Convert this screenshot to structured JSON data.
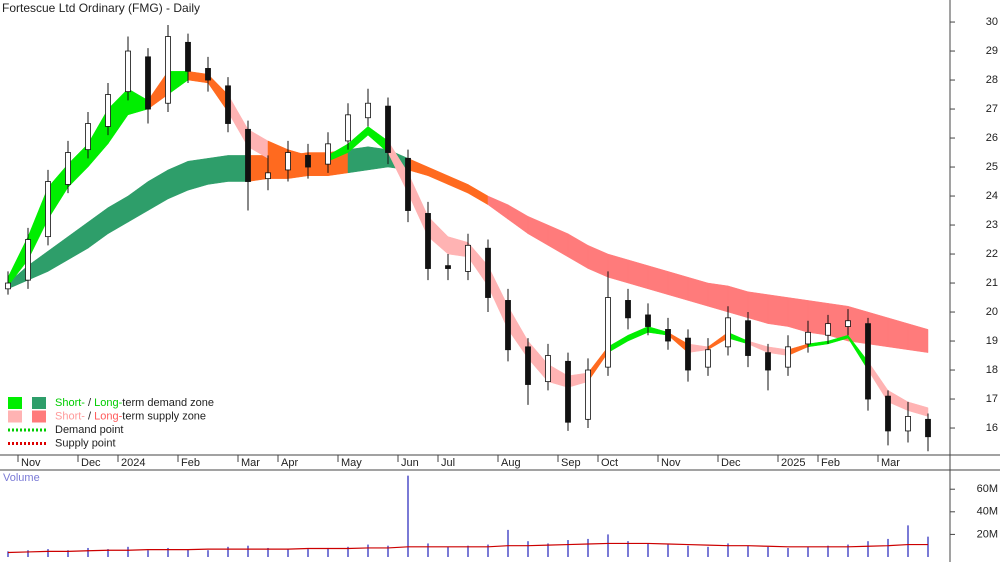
{
  "chart_data": {
    "type": "candlestick",
    "title": "Fortescue Ltd Ordinary (FMG) - Daily",
    "categories": [
      null,
      "Nov",
      null,
      null,
      "Dec",
      null,
      "2024",
      null,
      null,
      "Feb",
      null,
      null,
      "Mar",
      null,
      "Apr",
      null,
      null,
      "May",
      null,
      null,
      "Jun",
      null,
      "Jul",
      null,
      null,
      "Aug",
      null,
      null,
      "Sep",
      null,
      "Oct",
      null,
      null,
      "Nov",
      null,
      null,
      "Dec",
      null,
      null,
      "2025",
      null,
      "Feb",
      null,
      null,
      "Mar",
      null,
      null
    ],
    "open": [
      20.8,
      21.1,
      22.6,
      24.4,
      25.6,
      26.4,
      27.6,
      28.8,
      27.2,
      29.3,
      28.4,
      27.8,
      26.3,
      24.6,
      24.9,
      25.4,
      25.1,
      25.9,
      26.7,
      27.1,
      25.3,
      23.4,
      21.6,
      21.4,
      22.2,
      20.4,
      18.8,
      17.6,
      18.3,
      16.3,
      18.1,
      20.4,
      19.9,
      19.4,
      19.1,
      18.1,
      18.8,
      19.7,
      18.6,
      18.1,
      18.9,
      19.2,
      19.5,
      19.6,
      17.1,
      15.9,
      16.3
    ],
    "high": [
      21.4,
      22.9,
      24.9,
      25.9,
      26.9,
      27.9,
      29.5,
      29.1,
      29.9,
      29.6,
      28.8,
      28.1,
      26.6,
      25.4,
      25.9,
      25.8,
      26.2,
      27.2,
      27.7,
      27.4,
      25.6,
      23.8,
      22.0,
      22.7,
      22.5,
      20.8,
      19.1,
      18.9,
      18.6,
      18.4,
      21.4,
      20.8,
      20.3,
      19.8,
      19.4,
      19.1,
      20.2,
      20.0,
      18.9,
      19.2,
      19.7,
      19.9,
      20.1,
      19.8,
      17.3,
      16.9,
      16.5
    ],
    "low": [
      20.6,
      20.8,
      22.3,
      24.1,
      25.3,
      26.1,
      27.3,
      26.5,
      26.9,
      27.9,
      27.6,
      26.2,
      23.5,
      24.2,
      24.5,
      24.6,
      24.8,
      25.6,
      26.4,
      25.1,
      23.1,
      21.1,
      21.1,
      21.1,
      20.0,
      18.3,
      16.8,
      17.3,
      15.9,
      16.0,
      17.8,
      19.4,
      19.2,
      18.7,
      17.6,
      17.8,
      18.5,
      18.1,
      17.3,
      17.8,
      18.6,
      18.9,
      19.2,
      16.6,
      15.4,
      15.5,
      15.2
    ],
    "close": [
      21.0,
      22.5,
      24.5,
      25.5,
      26.5,
      27.5,
      29.0,
      27.0,
      29.5,
      28.3,
      28.0,
      26.5,
      24.5,
      24.8,
      25.5,
      25.0,
      25.8,
      26.8,
      27.2,
      25.5,
      23.5,
      21.5,
      21.5,
      22.3,
      20.5,
      18.7,
      17.5,
      18.5,
      16.2,
      18.0,
      20.5,
      19.8,
      19.5,
      19.0,
      18.0,
      18.7,
      19.8,
      18.5,
      18.0,
      18.8,
      19.3,
      19.6,
      19.7,
      17.0,
      15.9,
      16.4,
      15.7
    ],
    "ylim": [
      15.07,
      30.76
    ],
    "yticks": [
      16,
      17,
      18,
      19,
      20,
      21,
      22,
      23,
      24,
      25,
      26,
      27,
      28,
      29,
      30
    ],
    "candle_color": "#111111",
    "bands": [
      {
        "upper": [
          21.0,
          21.6,
          22.1,
          22.6,
          23.1,
          23.6,
          24.0,
          24.5,
          24.9,
          25.2,
          25.3,
          25.4,
          25.4,
          25.4,
          25.4,
          25.5,
          25.5,
          25.6,
          25.7,
          25.6,
          25.3,
          25.0,
          24.7,
          24.4,
          24.0,
          23.7,
          23.3,
          23.0,
          22.7,
          22.3,
          22.0,
          21.8,
          21.6,
          21.4,
          21.2,
          21.0,
          20.9,
          20.7,
          20.6,
          20.5,
          20.4,
          20.3,
          20.2,
          20.0,
          19.8,
          19.6,
          19.4
        ],
        "lower": [
          20.8,
          21.1,
          21.4,
          21.8,
          22.2,
          22.7,
          23.1,
          23.5,
          23.9,
          24.2,
          24.4,
          24.5,
          24.5,
          24.6,
          24.6,
          24.7,
          24.7,
          24.8,
          24.9,
          25.0,
          24.9,
          24.7,
          24.4,
          24.1,
          23.7,
          23.2,
          22.7,
          22.3,
          21.9,
          21.5,
          21.2,
          21.0,
          20.8,
          20.6,
          20.4,
          20.2,
          20.0,
          19.8,
          19.6,
          19.5,
          19.3,
          19.2,
          19.0,
          18.9,
          18.8,
          18.7,
          18.6
        ],
        "colors": [
          "#2e9e6a",
          "#2e9e6a",
          "#2e9e6a",
          "#2e9e6a",
          "#2e9e6a",
          "#2e9e6a",
          "#2e9e6a",
          "#2e9e6a",
          "#2e9e6a",
          "#2e9e6a",
          "#2e9e6a",
          "#2e9e6a",
          "#ff6a1f",
          "#ff6a1f",
          "#ff6a1f",
          "#ff6a1f",
          "#ff6a1f",
          "#2e9e6a",
          "#2e9e6a",
          "#2e9e6a",
          "#ff6a1f",
          "#ff6a1f",
          "#ff6a1f",
          "#ff6a1f",
          "#ff7b7b",
          "#ff7b7b",
          "#ff7b7b",
          "#ff7b7b",
          "#ff7b7b",
          "#ff7b7b",
          "#ff7b7b",
          "#ff7b7b",
          "#ff7b7b",
          "#ff7b7b",
          "#ff7b7b",
          "#ff7b7b",
          "#ff7b7b",
          "#ff7b7b",
          "#ff7b7b",
          "#ff7b7b",
          "#ff7b7b",
          "#ff7b7b",
          "#ff7b7b",
          "#ff7b7b",
          "#ff7b7b",
          "#ff7b7b"
        ]
      },
      {
        "upper": [
          21.2,
          22.6,
          24.3,
          25.1,
          25.8,
          27.0,
          27.7,
          27.3,
          28.3,
          28.3,
          28.2,
          27.5,
          26.3,
          25.9,
          25.6,
          25.4,
          25.4,
          25.8,
          26.4,
          25.9,
          24.8,
          23.3,
          22.6,
          22.4,
          21.6,
          20.2,
          19.0,
          18.2,
          17.8,
          17.9,
          18.8,
          19.2,
          19.5,
          19.3,
          18.9,
          18.8,
          19.3,
          19.0,
          18.8,
          18.7,
          18.9,
          19.0,
          19.2,
          18.3,
          17.3,
          16.9,
          16.7
        ],
        "lower": [
          20.9,
          21.8,
          23.2,
          24.3,
          25.0,
          25.8,
          26.8,
          27.0,
          27.5,
          28.0,
          27.9,
          26.9,
          25.7,
          25.3,
          25.2,
          25.0,
          25.2,
          25.5,
          26.1,
          25.5,
          24.1,
          22.6,
          22.0,
          21.9,
          20.9,
          19.4,
          18.4,
          17.6,
          17.4,
          17.6,
          18.6,
          19.0,
          19.3,
          19.2,
          18.6,
          18.7,
          19.1,
          18.9,
          18.6,
          18.5,
          18.8,
          18.9,
          19.1,
          18.0,
          16.9,
          16.6,
          16.4
        ],
        "colors": [
          "#00ee00",
          "#00ee00",
          "#00ee00",
          "#00ee00",
          "#00ee00",
          "#00ee00",
          "#00ee00",
          "#ff6a1f",
          "#00ee00",
          "#ff6a1f",
          "#ff6a1f",
          "#ffb3b3",
          "#ffb3b3",
          "#ff6a1f",
          "#ff6a1f",
          "#ff6a1f",
          "#00ee00",
          "#00ee00",
          "#00ee00",
          "#ffb3b3",
          "#ffb3b3",
          "#ffb3b3",
          "#ffb3b3",
          "#ffb3b3",
          "#ffb3b3",
          "#ffb3b3",
          "#ffb3b3",
          "#ffb3b3",
          "#ffb3b3",
          "#ff6a1f",
          "#00ee00",
          "#00ee00",
          "#00ee00",
          "#ff6a1f",
          "#ffb3b3",
          "#ff6a1f",
          "#00ee00",
          "#ffb3b3",
          "#ffb3b3",
          "#ff6a1f",
          "#00ee00",
          "#00ee00",
          "#00ee00",
          "#ffb3b3",
          "#ffb3b3",
          "#ffb3b3"
        ]
      }
    ],
    "volume": {
      "label": "Volume",
      "color": "#7a7ad6",
      "average_color": "#cc0000",
      "values": [
        5000000.0,
        6000000.0,
        7000000.0,
        6000000.0,
        8000000.0,
        7000000.0,
        9000000.0,
        6000000.0,
        8000000.0,
        7000000.0,
        6000000.0,
        9000000.0,
        10000000.0,
        8000000.0,
        7000000.0,
        7000000.0,
        8000000.0,
        9000000.0,
        11000000.0,
        10000000.0,
        72000000.0,
        12000000.0,
        9000000.0,
        10000000.0,
        11000000.0,
        24000000.0,
        14000000.0,
        12000000.0,
        15000000.0,
        16000000.0,
        20000000.0,
        14000000.0,
        12000000.0,
        11000000.0,
        10000000.0,
        9000000.0,
        12000000.0,
        10000000.0,
        9000000.0,
        8000000.0,
        9000000.0,
        10000000.0,
        11000000.0,
        14000000.0,
        16000000.0,
        28000000.0,
        18000000.0
      ],
      "average": [
        4000000.0,
        4500000.0,
        5000000.0,
        5000000.0,
        5500000.0,
        6000000.0,
        6000000.0,
        6500000.0,
        6500000.0,
        6500000.0,
        7000000.0,
        7000000.0,
        7000000.0,
        7000000.0,
        7000000.0,
        7500000.0,
        7500000.0,
        7500000.0,
        8000000.0,
        8000000.0,
        9000000.0,
        9000000.0,
        9000000.0,
        9000000.0,
        9000000.0,
        10000000.0,
        10000000.0,
        10500000.0,
        11000000.0,
        11500000.0,
        12000000.0,
        12000000.0,
        12000000.0,
        11500000.0,
        11000000.0,
        10500000.0,
        10000000.0,
        10000000.0,
        9500000.0,
        9000000.0,
        9000000.0,
        9000000.0,
        9000000.0,
        9500000.0,
        10000000.0,
        11000000.0,
        11000000.0
      ],
      "ylim": [
        0,
        77000000.0
      ],
      "yticks": [
        {
          "value": 20000000,
          "label": "20M"
        },
        {
          "value": 40000000,
          "label": "40M"
        },
        {
          "value": 60000000,
          "label": "60M"
        }
      ]
    },
    "legend": [
      {
        "swatches": [
          "#00ee00",
          "#2e9e6a"
        ],
        "parts": [
          {
            "text": "Short-",
            "color": "#00cc00"
          },
          {
            "text": " / "
          },
          {
            "text": "Long-",
            "color": "#00cc00"
          },
          {
            "text": "term demand zone"
          }
        ]
      },
      {
        "swatches": [
          "#ffb3b3",
          "#ff7b7b"
        ],
        "parts": [
          {
            "text": "Short-",
            "color": "#ff9a9a"
          },
          {
            "text": " / "
          },
          {
            "text": "Long-",
            "color": "#ff5a5a"
          },
          {
            "text": "term supply zone"
          }
        ]
      },
      {
        "dotted": "#00cc00",
        "parts": [
          {
            "text": "Demand point"
          }
        ]
      },
      {
        "dotted": "#dd0000",
        "parts": [
          {
            "text": "Supply point"
          }
        ]
      }
    ]
  }
}
